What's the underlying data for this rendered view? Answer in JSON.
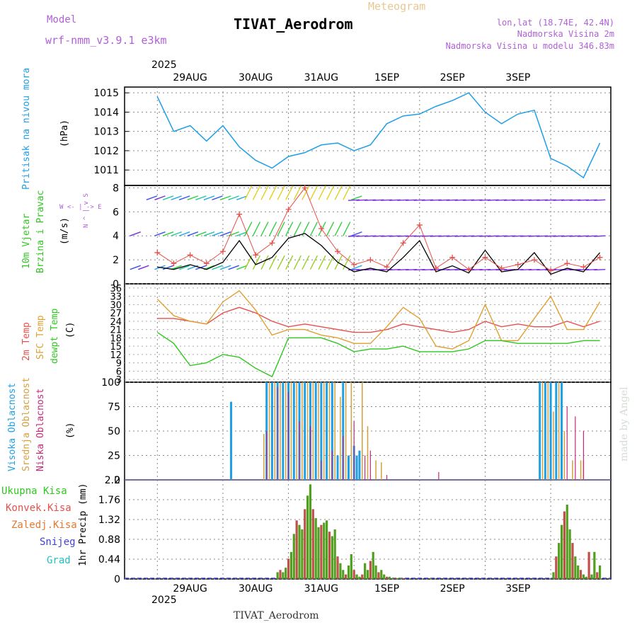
{
  "header": {
    "model_label": "Model",
    "model_name": "wrf-nmm_v3.9.1 e3km",
    "meteogram": "Meteogram",
    "station": "TIVAT_Aerodrom",
    "lonlat": "lon,lat (18.74E, 42.4N)",
    "elevation": "Nadmorska Visina 2m",
    "model_elevation": "Nadmorska Visina u modelu 346.83m",
    "year_top": "2025",
    "year_bottom": "2025",
    "footer": "TIVAT_Aerodrom",
    "credit": "made by Angel"
  },
  "colors": {
    "pressure": "#1ea0e6",
    "temp2m": "#e6504a",
    "sfc": "#e0a030",
    "dew": "#2ec81e",
    "wind_black": "#000000",
    "gust": "#e6504a",
    "high_cloud": "#1ea0e6",
    "mid_cloud": "#d4a03c",
    "low_cloud": "#c8287a",
    "precip": "#50a020",
    "conv": "#c0504a",
    "dash": "#4040c8"
  },
  "chart_data": [
    {
      "type": "line",
      "title": "Pritisak na nivou mora",
      "ylabel": "(hPa)",
      "ylim": [
        1010.2,
        1015.3
      ],
      "yticks": [
        "1011",
        "1012",
        "1013",
        "1014",
        "1015"
      ],
      "xticks": [
        "29AUG",
        "30AUG",
        "31AUG",
        "1SEP",
        "2SEP",
        "3SEP"
      ],
      "x_hours": [
        0,
        6,
        12,
        18,
        24,
        30,
        36,
        42,
        48,
        54,
        60,
        66,
        72,
        78,
        84,
        90,
        96,
        102,
        108,
        114,
        120,
        126,
        132,
        138,
        144,
        150,
        156,
        162
      ],
      "series": [
        {
          "name": "Pritisak na nivou mora",
          "values": [
            1014.8,
            1013.0,
            1013.3,
            1012.5,
            1013.3,
            1012.2,
            1011.5,
            1011.1,
            1011.7,
            1011.9,
            1012.3,
            1012.4,
            1012.0,
            1012.3,
            1013.4,
            1013.8,
            1013.9,
            1014.3,
            1014.6,
            1015.0,
            1014.0,
            1013.4,
            1013.9,
            1014.1,
            1011.6,
            1011.2,
            1010.6,
            1012.4
          ]
        }
      ]
    },
    {
      "type": "line",
      "title": "10m Vjetar Brzina i Pravac",
      "ylabel": "(m/s)",
      "direction_legend": [
        "W",
        "E",
        "N",
        "S"
      ],
      "ylim": [
        0,
        8.2
      ],
      "yticks": [
        "0",
        "2",
        "4",
        "6",
        "8"
      ],
      "x_hours": [
        0,
        6,
        12,
        18,
        24,
        30,
        36,
        42,
        48,
        54,
        60,
        66,
        72,
        78,
        84,
        90,
        96,
        102,
        108,
        114,
        120,
        126,
        132,
        138,
        144,
        150,
        156,
        162
      ],
      "series": [
        {
          "name": "wind speed",
          "values": [
            1.4,
            1.2,
            1.6,
            1.2,
            1.8,
            3.6,
            1.6,
            2.2,
            3.8,
            4.2,
            3.2,
            1.8,
            1.0,
            1.3,
            1.0,
            2.2,
            3.6,
            1.0,
            1.5,
            0.9,
            2.8,
            1.0,
            1.2,
            2.6,
            0.8,
            1.3,
            1.0,
            2.6
          ]
        },
        {
          "name": "gust",
          "values": [
            2.6,
            1.7,
            2.4,
            1.7,
            2.7,
            5.8,
            2.4,
            3.4,
            6.2,
            8.0,
            4.6,
            2.7,
            1.6,
            2.0,
            1.4,
            3.4,
            4.9,
            1.3,
            2.2,
            1.2,
            2.2,
            1.3,
            1.6,
            2.0,
            1.1,
            1.7,
            1.4,
            2.2
          ]
        }
      ]
    },
    {
      "type": "line",
      "title": "2m Temp / SFC Temp / dewpt Temp",
      "ylabel": "(C)",
      "ylim": [
        2,
        37.5
      ],
      "yticks": [
        "3",
        "6",
        "9",
        "12",
        "15",
        "18",
        "21",
        "24",
        "27",
        "30",
        "33",
        "36"
      ],
      "x_hours": [
        0,
        6,
        12,
        18,
        24,
        30,
        36,
        42,
        48,
        54,
        60,
        66,
        72,
        78,
        84,
        90,
        96,
        102,
        108,
        114,
        120,
        126,
        132,
        138,
        144,
        150,
        156,
        162
      ],
      "series": [
        {
          "name": "2m Temp",
          "values": [
            25,
            25,
            24,
            23,
            27,
            29,
            27,
            24,
            22,
            23,
            22,
            21,
            20,
            20,
            21,
            23,
            22,
            21,
            20,
            21,
            24,
            22,
            23,
            22,
            22,
            24,
            22,
            24
          ]
        },
        {
          "name": "SFC Temp",
          "values": [
            32,
            26,
            24,
            23,
            31,
            35,
            28,
            19,
            21,
            21,
            19,
            18,
            16,
            16,
            22,
            29,
            25,
            15,
            14,
            17,
            30,
            17,
            17,
            25,
            33,
            21,
            21,
            31
          ]
        },
        {
          "name": "dewpt Temp",
          "values": [
            20,
            16,
            8,
            9,
            12,
            11,
            7,
            4,
            18,
            18,
            18,
            16,
            13,
            14,
            14,
            15,
            13,
            13,
            13,
            14,
            17,
            17,
            16,
            16,
            16,
            16,
            17,
            17
          ]
        }
      ]
    },
    {
      "type": "bar",
      "title": "Visoka / Srednja / Niska Oblacnost",
      "ylabel": "(%)",
      "ylim": [
        0,
        100
      ],
      "yticks": [
        "0",
        "25",
        "50",
        "75",
        "100"
      ],
      "series": [
        {
          "name": "Visoka Oblacnost",
          "x_hours": [
            27,
            40,
            42,
            44,
            46,
            48,
            50,
            52,
            54,
            56,
            58,
            60,
            62,
            64,
            66,
            68,
            70,
            72,
            73,
            74,
            140,
            142,
            144,
            146,
            148
          ],
          "values": [
            80,
            100,
            100,
            100,
            100,
            100,
            100,
            100,
            100,
            100,
            100,
            100,
            100,
            100,
            25,
            100,
            25,
            35,
            25,
            30,
            100,
            100,
            100,
            100,
            100
          ]
        },
        {
          "name": "Srednja Oblacnost",
          "x_hours": [
            39,
            41,
            43,
            45,
            47,
            49,
            51,
            53,
            55,
            57,
            59,
            61,
            63,
            65,
            67,
            69,
            71,
            75,
            77,
            80,
            82,
            141,
            143,
            145,
            147,
            149,
            152,
            155,
            156
          ],
          "values": [
            47,
            100,
            100,
            100,
            100,
            100,
            100,
            100,
            100,
            100,
            100,
            100,
            100,
            100,
            85,
            100,
            100,
            100,
            55,
            20,
            18,
            100,
            100,
            70,
            100,
            50,
            20,
            20,
            20
          ]
        },
        {
          "name": "Niska Oblacnost",
          "x_hours": [
            40,
            44,
            48,
            52,
            56,
            60,
            64,
            68,
            72,
            76,
            78,
            84,
            103,
            150,
            153,
            156
          ],
          "values": [
            50,
            95,
            90,
            60,
            55,
            20,
            30,
            45,
            60,
            25,
            30,
            5,
            8,
            75,
            65,
            50
          ]
        }
      ]
    },
    {
      "type": "bar",
      "title": "1hr Precip",
      "ylabel": "1hr Precip (mm)",
      "legend": [
        "Ukupna Kisa",
        "Konvek.Kisa",
        "Zaledj.Kisa",
        "Snijeg",
        "Grad"
      ],
      "ylim": [
        0,
        2.2
      ],
      "yticks": [
        "0",
        "0.44",
        "0.88",
        "1.32",
        "1.76",
        "2.2"
      ],
      "xticks": [
        "29AUG",
        "30AUG",
        "31AUG",
        "1SEP",
        "2SEP",
        "3SEP"
      ],
      "series": [
        {
          "name": "Ukupna Kisa",
          "x_hours": [
            44,
            45,
            46,
            47,
            48,
            49,
            50,
            51,
            52,
            53,
            54,
            55,
            56,
            57,
            58,
            59,
            60,
            61,
            62,
            63,
            64,
            65,
            66,
            67,
            68,
            69,
            70,
            71,
            72,
            73,
            74,
            75,
            76,
            77,
            78,
            79,
            80,
            81,
            82,
            83,
            84,
            85,
            86,
            87,
            88,
            89,
            90,
            100,
            145,
            146,
            147,
            148,
            149,
            150,
            151,
            152,
            153,
            154,
            155,
            156,
            157,
            158,
            159,
            160,
            161,
            162
          ],
          "values": [
            0.15,
            0.2,
            0.15,
            0.25,
            0.45,
            0.6,
            1.0,
            1.3,
            1.2,
            1.1,
            1.55,
            1.85,
            2.1,
            1.55,
            1.35,
            1.15,
            1.2,
            1.25,
            1.3,
            1.05,
            0.95,
            1.1,
            0.5,
            0.35,
            0.2,
            0.1,
            0.3,
            0.55,
            0.2,
            0.1,
            0.05,
            0.1,
            0.35,
            0.2,
            0.4,
            0.6,
            0.3,
            0.15,
            0.2,
            0.1,
            0.05,
            0.05,
            0.02,
            0.02,
            0.02,
            0.02,
            0.02,
            0.02,
            0.15,
            0.5,
            0.8,
            1.2,
            1.5,
            1.65,
            1.1,
            0.8,
            0.5,
            0.3,
            0.2,
            0.1,
            0.05,
            0.6,
            0.1,
            0.6,
            0.15,
            0.3
          ]
        }
      ]
    }
  ],
  "panel_labels": {
    "p1_title": "Pritisak na nivou mora",
    "p1_unit": "(hPa)",
    "p2_title_a": "10m Vjetar",
    "p2_title_b": "Brzina i Pravac",
    "p2_unit": "(m/s)",
    "p2_dir": "W <- | -> E",
    "p2_dir_v": "N ^ | v S",
    "p3_t2": "2m Temp",
    "p3_sfc": "SFC Temp",
    "p3_dew": "dewpt Temp",
    "p3_unit": "(C)",
    "p4_high": "Visoka Oblacnost",
    "p4_mid": "Srednja Oblacnost",
    "p4_low": "Niska Oblacnost",
    "p4_unit": "(%)",
    "p5_l1": "Ukupna Kisa",
    "p5_l2": "Konvek.Kisa",
    "p5_l3": "Zaledj.Kisa",
    "p5_l4": "Snijeg",
    "p5_l5": "Grad",
    "p5_unit": "1hr Precip (mm)"
  }
}
